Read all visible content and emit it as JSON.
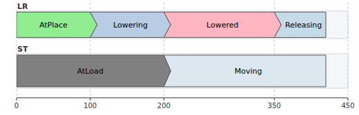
{
  "chart_data": {
    "type": "timing",
    "xlim": [
      0,
      450
    ],
    "xticks": [
      0,
      100,
      200,
      350,
      450
    ],
    "grid": true,
    "series": [
      {
        "name": "LR",
        "segments": [
          {
            "label": "AtPlace",
            "start": 0,
            "end": 100,
            "color": "#90EE90"
          },
          {
            "label": "Lowering",
            "start": 100,
            "end": 200,
            "color": "#b8cce4"
          },
          {
            "label": "Lowered",
            "start": 200,
            "end": 350,
            "color": "#ffb6c1"
          },
          {
            "label": "Releasing",
            "start": 350,
            "end": 420,
            "color": "#c5dce8"
          }
        ]
      },
      {
        "name": "ST",
        "segments": [
          {
            "label": "AtLoad",
            "start": 0,
            "end": 200,
            "color": "#808080"
          },
          {
            "label": "Moving",
            "start": 200,
            "end": 420,
            "color": "#dce8f0"
          }
        ]
      }
    ]
  }
}
